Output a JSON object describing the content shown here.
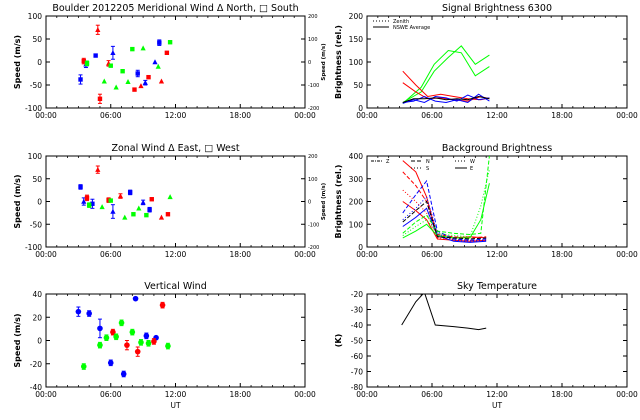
{
  "chart_data": [
    {
      "id": "meridional",
      "type": "scatter",
      "title": "Boulder    2012205      Meridional Wind   Δ North, □ South",
      "ylabel": "Speed (m/s)",
      "ylabel2": "Speed (m/s)",
      "xlabel": "",
      "xlim": [
        0,
        24
      ],
      "ylim": [
        -100,
        100
      ],
      "ylim2": [
        -200,
        200
      ],
      "xticks": [
        "00:00",
        "06:00",
        "12:00",
        "18:00",
        "00:00"
      ],
      "yticks": [
        "-100",
        "-50",
        "0",
        "50",
        "100"
      ],
      "yticks2": [
        "-200",
        "-100",
        "0",
        "100",
        "200"
      ],
      "series": [
        {
          "color": "#0000ff",
          "points": [
            [
              3.2,
              -38,
              10
            ],
            [
              3.7,
              -5,
              7
            ],
            [
              4.6,
              14,
              4
            ],
            [
              6.2,
              20,
              14
            ],
            [
              8.5,
              -25,
              7
            ],
            [
              9.2,
              -45,
              5
            ],
            [
              10.5,
              42,
              6
            ],
            [
              10.1,
              0,
              4
            ]
          ]
        },
        {
          "color": "#ff0000",
          "points": [
            [
              3.5,
              2,
              6
            ],
            [
              4.8,
              70,
              10
            ],
            [
              5.0,
              -80,
              10
            ],
            [
              5.8,
              -3,
              6
            ],
            [
              8.2,
              -60,
              4
            ],
            [
              8.8,
              -52,
              4
            ],
            [
              9.5,
              -33,
              4
            ],
            [
              10.7,
              -42,
              4
            ],
            [
              11.2,
              20,
              3
            ]
          ]
        },
        {
          "color": "#00ff00",
          "points": [
            [
              3.8,
              -3,
              5
            ],
            [
              5.4,
              -42,
              3
            ],
            [
              6.0,
              -8,
              3
            ],
            [
              6.5,
              -55,
              3
            ],
            [
              7.1,
              -20,
              3
            ],
            [
              7.6,
              -43,
              3
            ],
            [
              8.0,
              28,
              3
            ],
            [
              9.0,
              30,
              3
            ],
            [
              11.5,
              43,
              3
            ],
            [
              10.4,
              -10,
              3
            ]
          ]
        }
      ]
    },
    {
      "id": "zonal",
      "type": "scatter",
      "title": "Zonal Wind        Δ East,  □ West",
      "ylabel": "Speed (m/s)",
      "ylabel2": "Speed (m/s)",
      "xlim": [
        0,
        24
      ],
      "ylim": [
        -100,
        100
      ],
      "ylim2": [
        -200,
        200
      ],
      "xticks": [
        "00:00",
        "06:00",
        "12:00",
        "18:00",
        "00:00"
      ],
      "yticks": [
        "-100",
        "-50",
        "0",
        "50",
        "100"
      ],
      "yticks2": [
        "-200",
        "-100",
        "0",
        "100",
        "200"
      ],
      "series": [
        {
          "color": "#0000ff",
          "points": [
            [
              3.2,
              32,
              5
            ],
            [
              3.5,
              0,
              8
            ],
            [
              4.3,
              -5,
              10
            ],
            [
              6.2,
              -22,
              15
            ],
            [
              7.8,
              20,
              5
            ],
            [
              9.0,
              -2,
              5
            ],
            [
              9.6,
              -18,
              5
            ]
          ]
        },
        {
          "color": "#ff0000",
          "points": [
            [
              3.8,
              8,
              6
            ],
            [
              4.8,
              70,
              8
            ],
            [
              5.8,
              3,
              5
            ],
            [
              6.9,
              12,
              5
            ],
            [
              9.8,
              5,
              4
            ],
            [
              10.7,
              -35,
              4
            ],
            [
              11.3,
              -28,
              3
            ]
          ]
        },
        {
          "color": "#00ff00",
          "points": [
            [
              4.0,
              -8,
              5
            ],
            [
              5.2,
              -12,
              4
            ],
            [
              6.0,
              2,
              4
            ],
            [
              7.3,
              -35,
              3
            ],
            [
              8.1,
              -28,
              3
            ],
            [
              8.6,
              -15,
              3
            ],
            [
              9.3,
              -30,
              3
            ],
            [
              11.5,
              10,
              3
            ]
          ]
        }
      ]
    },
    {
      "id": "vertical",
      "type": "scatter",
      "title": "Vertical Wind",
      "ylabel": "Speed (m/s)",
      "xlabel": "UT",
      "xlim": [
        0,
        24
      ],
      "ylim": [
        -50,
        50
      ],
      "xticks": [
        "00:00",
        "06:00",
        "12:00",
        "18:00",
        "00:00"
      ],
      "yticks": [
        "-40",
        "-20",
        "0",
        "20",
        "40"
      ],
      "series": [
        {
          "color": "#0000ff",
          "points": [
            [
              3.0,
              31,
              5
            ],
            [
              4.0,
              29,
              3
            ],
            [
              5.0,
              13,
              10
            ],
            [
              6.0,
              -24,
              3
            ],
            [
              7.2,
              -36,
              3
            ],
            [
              8.3,
              45,
              2
            ],
            [
              9.3,
              5,
              3
            ],
            [
              10.2,
              3,
              2
            ]
          ]
        },
        {
          "color": "#ff0000",
          "points": [
            [
              6.2,
              9,
              3
            ],
            [
              7.5,
              -5,
              5
            ],
            [
              8.5,
              -12,
              5
            ],
            [
              10.0,
              -1,
              3
            ],
            [
              10.8,
              38,
              3
            ]
          ]
        },
        {
          "color": "#00ff00",
          "points": [
            [
              3.5,
              -28,
              3
            ],
            [
              5.0,
              -5,
              3
            ],
            [
              5.6,
              3,
              3
            ],
            [
              6.5,
              4,
              3
            ],
            [
              7.0,
              19,
              3
            ],
            [
              8.0,
              9,
              3
            ],
            [
              8.8,
              -2,
              3
            ],
            [
              9.5,
              -3,
              3
            ],
            [
              11.3,
              -6,
              3
            ]
          ]
        }
      ]
    },
    {
      "id": "signal",
      "type": "line",
      "title": "Signal Brightness         6300",
      "ylabel": "Brightness (rel.)",
      "xlim": [
        0,
        24
      ],
      "ylim": [
        0,
        200
      ],
      "xticks": [
        "00:00",
        "06:00",
        "12:00",
        "18:00",
        "00:00"
      ],
      "yticks": [
        "0",
        "50",
        "100",
        "150",
        "200"
      ],
      "legend": [
        "Zenith",
        "NSWE Average"
      ],
      "series": [
        {
          "color": "#00ff00",
          "x": [
            3.3,
            5.0,
            6.2,
            7.5,
            8.7,
            10.0,
            11.3
          ],
          "y": [
            10,
            45,
            95,
            125,
            120,
            70,
            90
          ]
        },
        {
          "color": "#00ff00",
          "x": [
            3.3,
            5.0,
            6.2,
            7.5,
            8.7,
            10.0,
            11.3
          ],
          "y": [
            12,
            35,
            80,
            110,
            135,
            95,
            115
          ]
        },
        {
          "color": "#ff0000",
          "x": [
            3.3,
            4.5,
            5.6,
            6.8,
            8.0,
            9.3,
            10.5,
            11.3
          ],
          "y": [
            80,
            50,
            25,
            30,
            25,
            20,
            18,
            22
          ]
        },
        {
          "color": "#ff0000",
          "x": [
            3.3,
            4.5,
            5.6,
            6.8,
            8.0,
            9.3,
            10.5,
            11.3
          ],
          "y": [
            55,
            35,
            20,
            22,
            18,
            15,
            25,
            20
          ]
        },
        {
          "color": "#0000ff",
          "x": [
            3.3,
            4.3,
            5.3,
            6.3,
            7.3,
            8.3,
            9.3,
            10.3,
            11.3
          ],
          "y": [
            10,
            18,
            12,
            25,
            22,
            15,
            28,
            18,
            22
          ]
        },
        {
          "color": "#0000ff",
          "x": [
            3.3,
            4.3,
            5.3,
            6.3,
            7.3,
            8.3,
            9.3,
            10.3,
            11.3
          ],
          "y": [
            12,
            15,
            25,
            15,
            12,
            18,
            12,
            30,
            15
          ]
        },
        {
          "color": "#000000",
          "x": [
            3.3,
            4.3,
            5.3,
            6.3,
            7.3,
            8.3,
            9.3,
            10.3,
            11.3
          ],
          "y": [
            12,
            20,
            20,
            22,
            18,
            20,
            18,
            25,
            20
          ]
        }
      ]
    },
    {
      "id": "background",
      "type": "line",
      "title": "Background Brightness",
      "ylabel": "Brightness (rel.)",
      "xlim": [
        0,
        24
      ],
      "ylim": [
        0,
        400
      ],
      "xticks": [
        "00:00",
        "06:00",
        "12:00",
        "18:00",
        "00:00"
      ],
      "yticks": [
        "0",
        "100",
        "200",
        "300",
        "400"
      ],
      "legend": [
        "Z",
        "N",
        "S",
        "W",
        "E"
      ],
      "series": [
        {
          "color": "#ff0000",
          "x": [
            3.3,
            4.5,
            5.5,
            6.5,
            8.0,
            9.5,
            11.0
          ],
          "y": [
            380,
            330,
            220,
            45,
            40,
            45,
            40
          ]
        },
        {
          "color": "#ff0000",
          "x": [
            3.3,
            4.5,
            5.5,
            6.5,
            8.0,
            9.5,
            11.0
          ],
          "y": [
            330,
            270,
            200,
            55,
            45,
            40,
            45
          ]
        },
        {
          "color": "#ff0000",
          "x": [
            3.3,
            4.5,
            5.5,
            6.5,
            8.0,
            9.5,
            11.0
          ],
          "y": [
            250,
            200,
            150,
            40,
            35,
            30,
            30
          ]
        },
        {
          "color": "#ff0000",
          "x": [
            3.3,
            4.5,
            5.5,
            6.5,
            8.0,
            9.5,
            11.0
          ],
          "y": [
            200,
            160,
            120,
            35,
            30,
            25,
            30
          ]
        },
        {
          "color": "#0000ff",
          "x": [
            3.3,
            4.5,
            5.5,
            6.5,
            8.0,
            9.5,
            11.0
          ],
          "y": [
            150,
            230,
            290,
            70,
            35,
            30,
            35
          ]
        },
        {
          "color": "#0000ff",
          "x": [
            3.3,
            4.5,
            5.5,
            6.5,
            8.0,
            9.5,
            11.0
          ],
          "y": [
            120,
            170,
            220,
            60,
            30,
            25,
            30
          ]
        },
        {
          "color": "#0000ff",
          "x": [
            3.3,
            4.5,
            5.5,
            6.5,
            8.0,
            9.5,
            11.0
          ],
          "y": [
            90,
            130,
            170,
            50,
            25,
            20,
            25
          ]
        },
        {
          "color": "#00ff00",
          "x": [
            3.3,
            4.5,
            5.5,
            6.5,
            8.0,
            9.5,
            10.5,
            11.3
          ],
          "y": [
            60,
            110,
            140,
            70,
            60,
            55,
            60,
            400
          ]
        },
        {
          "color": "#00ff00",
          "x": [
            3.3,
            4.5,
            5.5,
            6.5,
            8.0,
            9.5,
            10.5,
            11.3
          ],
          "y": [
            50,
            90,
            120,
            60,
            50,
            45,
            180,
            340
          ]
        },
        {
          "color": "#00ff00",
          "x": [
            3.3,
            4.5,
            5.5,
            6.5,
            8.0,
            9.5,
            10.5,
            11.3
          ],
          "y": [
            40,
            70,
            100,
            50,
            40,
            40,
            120,
            280
          ]
        },
        {
          "color": "#000000",
          "x": [
            3.3,
            4.5,
            5.5,
            6.5,
            8.0,
            9.5,
            11.0
          ],
          "y": [
            110,
            160,
            200,
            45,
            40,
            35,
            40
          ]
        }
      ]
    },
    {
      "id": "skytemp",
      "type": "line",
      "title": "Sky Temperature",
      "ylabel": "(K)",
      "xlabel": "UT",
      "xlim": [
        0,
        24
      ],
      "ylim": [
        -80,
        -20
      ],
      "xticks": [
        "00:00",
        "06:00",
        "12:00",
        "18:00",
        "00:00"
      ],
      "yticks": [
        "-80",
        "-70",
        "-60",
        "-50",
        "-40",
        "-30",
        "-20"
      ],
      "series": [
        {
          "color": "#000000",
          "x": [
            3.2,
            4.5,
            5.3,
            6.3,
            8.0,
            9.3,
            10.3,
            11.0
          ],
          "y": [
            -40,
            -25,
            -19,
            -40,
            -41,
            -42,
            -43,
            -42
          ]
        }
      ]
    }
  ]
}
